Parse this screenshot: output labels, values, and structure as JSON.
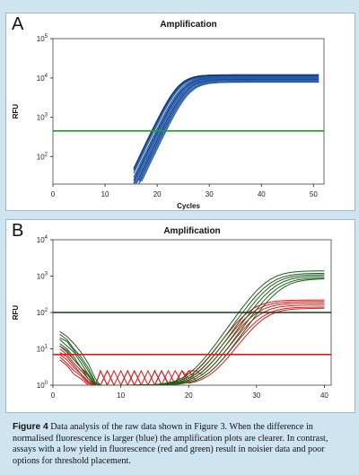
{
  "panels": [
    {
      "label": "A"
    },
    {
      "label": "B"
    }
  ],
  "chart_data": [
    {
      "type": "line",
      "title": "Amplification",
      "xlabel": "Cycles",
      "ylabel": "RFU",
      "log_y": true,
      "xlim": [
        0,
        52
      ],
      "ylim": [
        20,
        100000
      ],
      "xticks": [
        0,
        10,
        20,
        30,
        40,
        50
      ],
      "yticks": [
        {
          "value": 100,
          "base": "10",
          "exp": "2"
        },
        {
          "value": 1000,
          "base": "10",
          "exp": "3"
        },
        {
          "value": 10000,
          "base": "10",
          "exp": "4"
        },
        {
          "value": 100000,
          "base": "10",
          "exp": "5"
        }
      ],
      "threshold": 450,
      "colors": {
        "curves": "#2a5fb0",
        "curve_edge": "#17407a",
        "threshold": "#22a022"
      },
      "curves_description": "about 12 amplification curves rising from cycle 16 to a plateau near 10000 RFU",
      "series_params": [
        {
          "plateau": 12000,
          "midpoint": 24.0
        },
        {
          "plateau": 11000,
          "midpoint": 24.3
        },
        {
          "plateau": 10500,
          "midpoint": 24.6
        },
        {
          "plateau": 10000,
          "midpoint": 24.8
        },
        {
          "plateau": 9800,
          "midpoint": 25.0
        },
        {
          "plateau": 9500,
          "midpoint": 25.2
        },
        {
          "plateau": 9000,
          "midpoint": 25.4
        },
        {
          "plateau": 8700,
          "midpoint": 25.6
        },
        {
          "plateau": 8200,
          "midpoint": 25.8
        },
        {
          "plateau": 11500,
          "midpoint": 24.1
        },
        {
          "plateau": 7800,
          "midpoint": 26.0
        },
        {
          "plateau": 8000,
          "midpoint": 25.7
        }
      ]
    },
    {
      "type": "line",
      "title": "Amplification",
      "xlabel": "",
      "ylabel": "RFU",
      "log_y": true,
      "xlim": [
        0,
        41
      ],
      "ylim": [
        1,
        10000
      ],
      "xticks": [
        0,
        10,
        20,
        30,
        40
      ],
      "yticks": [
        {
          "value": 1,
          "base": "10",
          "exp": "0"
        },
        {
          "value": 10,
          "base": "10",
          "exp": "1"
        },
        {
          "value": 100,
          "base": "10",
          "exp": "2"
        },
        {
          "value": 1000,
          "base": "10",
          "exp": "3"
        },
        {
          "value": 10000,
          "base": "10",
          "exp": "4"
        }
      ],
      "thresholds": [
        {
          "value": 100,
          "color": "#1a3d1a"
        },
        {
          "value": 7,
          "color": "#dd1a1a"
        }
      ],
      "colors": {
        "red": "#dd1a1a",
        "green": "#1e5e1e"
      },
      "green_curves": [
        {
          "plateau": 1400,
          "midpoint": 31.5,
          "noise": [
            30,
            22,
            14,
            8,
            4,
            1.5
          ]
        },
        {
          "plateau": 1200,
          "midpoint": 31.8,
          "noise": [
            25,
            18,
            10,
            6,
            3,
            1.2
          ]
        },
        {
          "plateau": 1100,
          "midpoint": 32.2,
          "noise": [
            20,
            16,
            9,
            5,
            2.5,
            1.1
          ]
        },
        {
          "plateau": 1000,
          "midpoint": 32.6,
          "noise": [
            18,
            12,
            8,
            4,
            2,
            1
          ]
        },
        {
          "plateau": 900,
          "midpoint": 33.0,
          "noise": [
            14,
            10,
            6,
            3,
            1.8,
            1
          ]
        },
        {
          "plateau": 850,
          "midpoint": 33.5,
          "noise": [
            12,
            9,
            5,
            3,
            1.5,
            1
          ]
        }
      ],
      "red_curves": [
        {
          "plateau": 220,
          "midpoint": 29.0,
          "noise": [
            12,
            8,
            5,
            3,
            2,
            1
          ]
        },
        {
          "plateau": 200,
          "midpoint": 29.4,
          "noise": [
            10,
            7,
            4,
            2.5,
            1.5,
            1
          ]
        },
        {
          "plateau": 180,
          "midpoint": 29.8,
          "noise": [
            8,
            6,
            3.5,
            2,
            1.3,
            1
          ]
        },
        {
          "plateau": 160,
          "midpoint": 30.2,
          "noise": [
            7,
            5,
            3,
            2,
            1.2,
            1
          ]
        },
        {
          "plateau": 140,
          "midpoint": 30.6,
          "noise": [
            6,
            4,
            2.5,
            1.8,
            1.1,
            1
          ]
        },
        {
          "plateau": 130,
          "midpoint": 31.0,
          "noise": [
            5,
            3.5,
            2,
            1.5,
            1,
            1
          ]
        }
      ]
    }
  ],
  "caption": {
    "label": "Figure 4",
    "text": " Data analysis of the raw data shown in Figure 3. When the difference in normalised fluorescence is larger (blue) the amplification plots are clearer. In contrast, assays with a low yield in fluorescence (red and green) result in noisier data and poor options for threshold placement."
  }
}
